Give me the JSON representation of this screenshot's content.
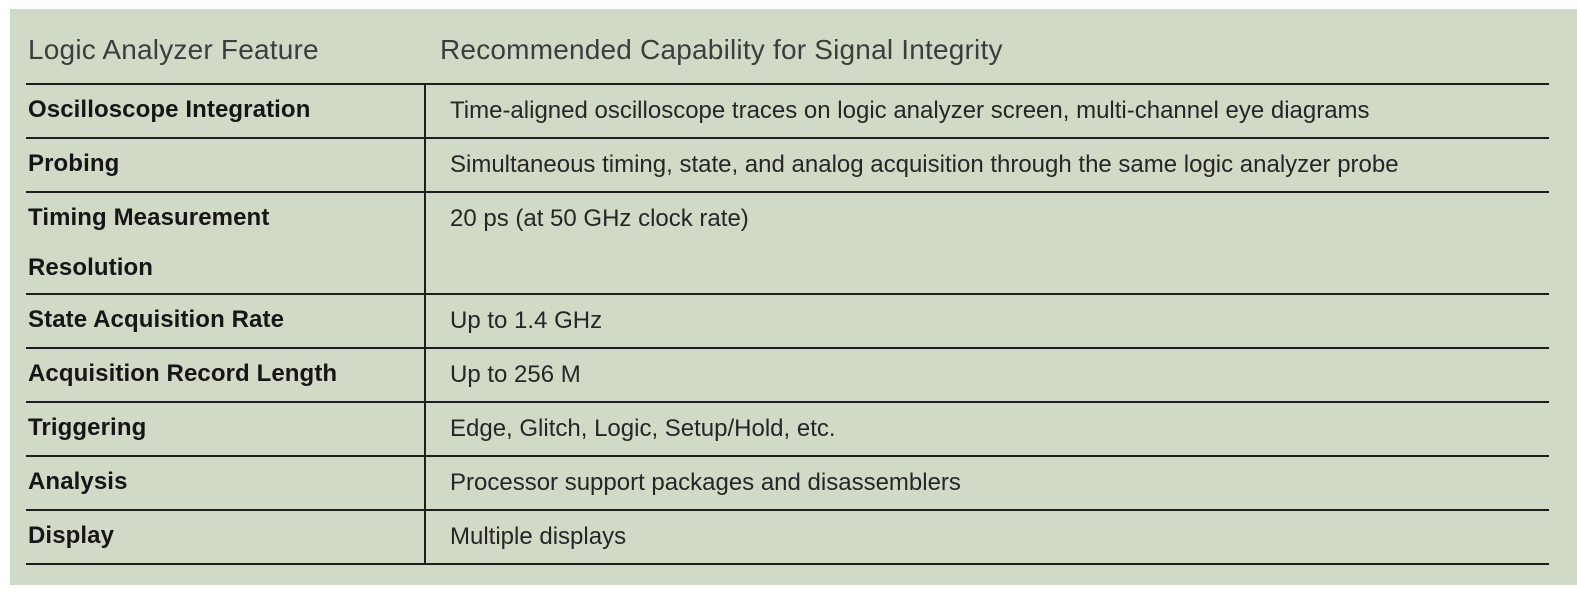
{
  "table": {
    "columns": [
      {
        "label": "Logic Analyzer Feature"
      },
      {
        "label": "Recommended Capability for Signal Integrity"
      }
    ],
    "rows": [
      {
        "feature": "Oscilloscope Integration",
        "capability": "Time-aligned oscilloscope traces on logic analyzer screen, multi-channel eye diagrams"
      },
      {
        "feature": "Probing",
        "capability": "Simultaneous timing, state, and analog acquisition through the same logic analyzer probe"
      },
      {
        "feature": "Timing Measurement Resolution",
        "capability": "20 ps (at 50 GHz clock rate)"
      },
      {
        "feature": "State Acquisition Rate",
        "capability": "Up to 1.4 GHz"
      },
      {
        "feature": "Acquisition Record Length",
        "capability": "Up to 256 M"
      },
      {
        "feature": "Triggering",
        "capability": "Edge, Glitch, Logic, Setup/Hold, etc."
      },
      {
        "feature": "Analysis",
        "capability": "Processor support packages and disassemblers"
      },
      {
        "feature": "Display",
        "capability": "Multiple displays"
      }
    ],
    "colors": {
      "panel_background": "#d1dac6",
      "rule_line": "#1e1e1e",
      "header_text": "#3d3d3d",
      "feature_text": "#161616",
      "capability_text": "#262626",
      "page_background": "#ffffff"
    }
  }
}
